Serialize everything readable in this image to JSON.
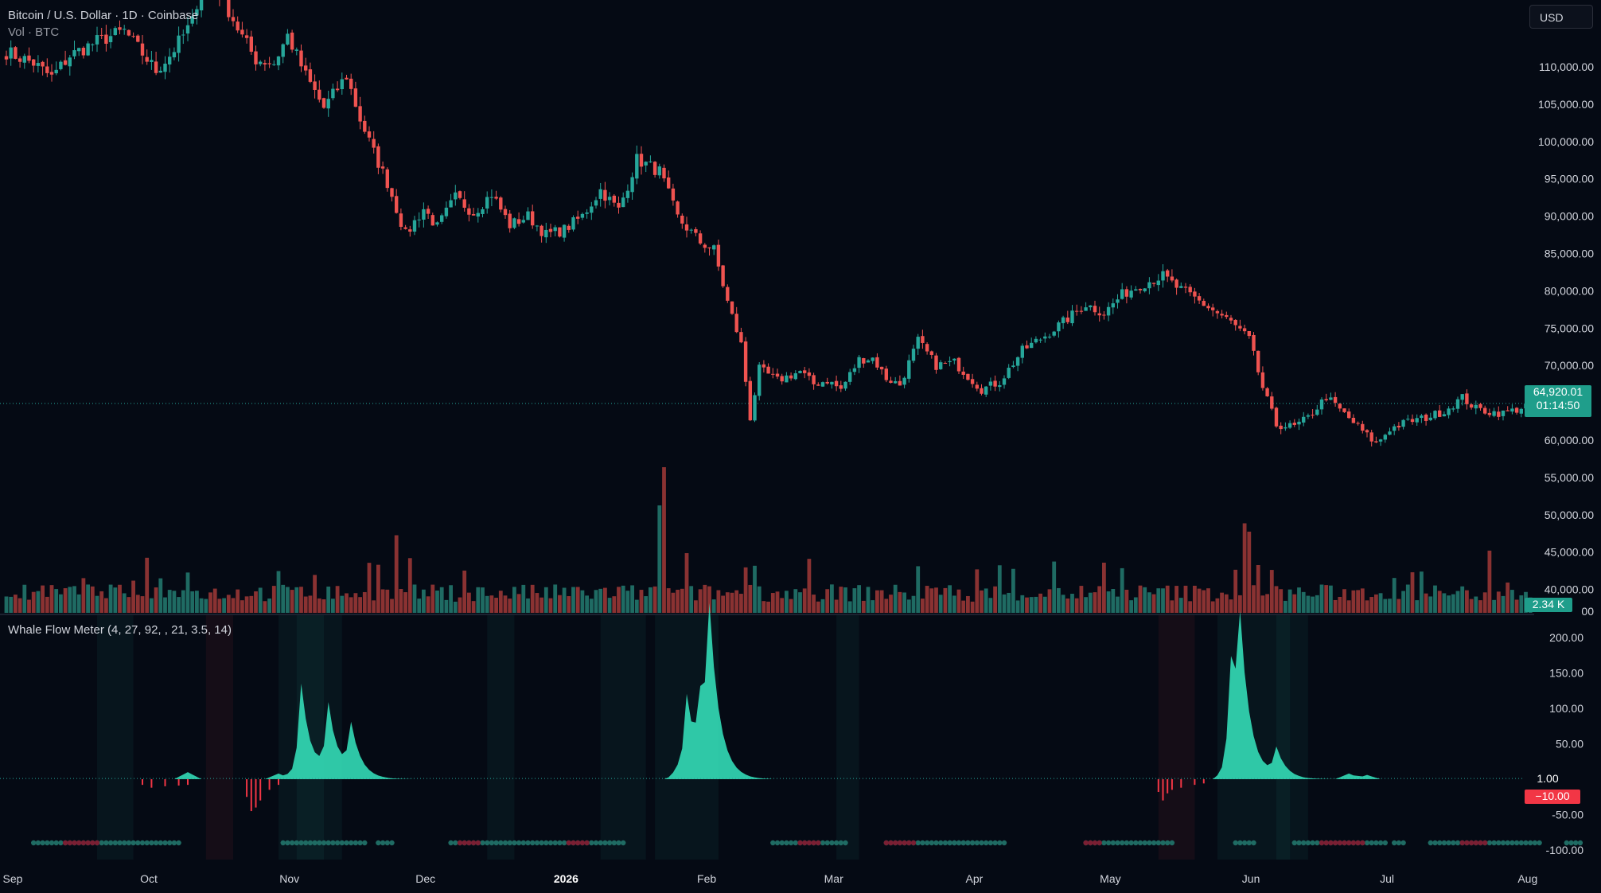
{
  "header": {
    "symbol_line": "Bitcoin / U.S. Dollar · 1D · Coinbase",
    "volume_line": "Vol · BTC",
    "currency_button": "USD"
  },
  "price_axis": {
    "ticks": [
      "110,000.00",
      "105,000.00",
      "100,000.00",
      "95,000.00",
      "90,000.00",
      "85,000.00",
      "80,000.00",
      "75,000.00",
      "70,000.00",
      "60,000.00",
      "55,000.00",
      "50,000.00",
      "45,000.00",
      "40,000.00"
    ],
    "tick_values": [
      110000,
      105000,
      100000,
      95000,
      90000,
      85000,
      80000,
      75000,
      70000,
      60000,
      55000,
      50000,
      45000,
      40000
    ],
    "range": [
      36600,
      118000
    ],
    "last_price_label": "64,920.01",
    "countdown_label": "01:14:50",
    "last_price": 64920.01,
    "volume_label": "2.34 K",
    "bottom_partial": "00"
  },
  "indicator": {
    "title": "Whale Flow Meter (4, 27, 92, , 21, 3.5, 14)",
    "ticks": [
      "200.00",
      "150.00",
      "100.00",
      "50.00",
      "-50.00",
      "-100.00"
    ],
    "tick_values": [
      200,
      150,
      100,
      50,
      -50,
      -100
    ],
    "range": [
      -112,
      215
    ],
    "current_label": "1.00",
    "current_value": 1,
    "negative_label": "−10.00",
    "negative_value": -10
  },
  "time_axis": {
    "labels": [
      "Sep",
      "Oct",
      "Nov",
      "Dec",
      "2026",
      "Feb",
      "Mar",
      "Apr",
      "May",
      "Jun",
      "Jul",
      "Aug"
    ],
    "bar_index": [
      0,
      30,
      61,
      91,
      122,
      153,
      181,
      212,
      242,
      273,
      303,
      334
    ],
    "bold": [
      "2026"
    ]
  },
  "colors": {
    "background": "#050a14",
    "up": "#26a69a",
    "down": "#ef5350",
    "vol_up": "#1f6b63",
    "vol_down": "#8a3232",
    "flow": "#36e8c0",
    "flow_neg": "#f23645",
    "last_price_tag": "#26a69a",
    "negative_tag": "#f23645",
    "text": "#d1d4dc"
  },
  "chart_data": {
    "type": "candlestick",
    "title": "Bitcoin / U.S. Dollar · 1D · Coinbase",
    "interval": "1D",
    "x_range": [
      "Sep 2025",
      "Aug 2026"
    ],
    "close_anchors": [
      [
        0,
        112000
      ],
      [
        6,
        110500
      ],
      [
        10,
        108600
      ],
      [
        14,
        111500
      ],
      [
        20,
        113400
      ],
      [
        26,
        114800
      ],
      [
        33,
        109500
      ],
      [
        36,
        111500
      ],
      [
        41,
        116000
      ],
      [
        44,
        124000
      ],
      [
        47,
        120000
      ],
      [
        52,
        114000
      ],
      [
        55,
        111000
      ],
      [
        59,
        110500
      ],
      [
        62,
        114200
      ],
      [
        66,
        108800
      ],
      [
        70,
        104500
      ],
      [
        75,
        108800
      ],
      [
        78,
        103000
      ],
      [
        81,
        98500
      ],
      [
        84,
        94500
      ],
      [
        88,
        87500
      ],
      [
        92,
        91000
      ],
      [
        95,
        88500
      ],
      [
        99,
        92500
      ],
      [
        103,
        90500
      ],
      [
        107,
        93000
      ],
      [
        111,
        88800
      ],
      [
        115,
        90000
      ],
      [
        119,
        87500
      ],
      [
        123,
        88200
      ],
      [
        127,
        90000
      ],
      [
        131,
        93500
      ],
      [
        135,
        90800
      ],
      [
        139,
        97600
      ],
      [
        144,
        96000
      ],
      [
        148,
        89800
      ],
      [
        153,
        86500
      ],
      [
        156,
        85500
      ],
      [
        159,
        78500
      ],
      [
        162,
        72800
      ],
      [
        164,
        63000
      ],
      [
        166,
        69500
      ],
      [
        170,
        68000
      ],
      [
        175,
        69200
      ],
      [
        178,
        67500
      ],
      [
        181,
        68000
      ],
      [
        184,
        66800
      ],
      [
        188,
        70800
      ],
      [
        191,
        71000
      ],
      [
        194,
        68300
      ],
      [
        197,
        67400
      ],
      [
        201,
        73300
      ],
      [
        205,
        70000
      ],
      [
        209,
        70400
      ],
      [
        212,
        68600
      ],
      [
        215,
        66800
      ],
      [
        219,
        67800
      ],
      [
        224,
        72000
      ],
      [
        229,
        74000
      ],
      [
        233,
        75800
      ],
      [
        238,
        78200
      ],
      [
        242,
        77000
      ],
      [
        246,
        79500
      ],
      [
        250,
        80800
      ],
      [
        255,
        82000
      ],
      [
        258,
        80500
      ],
      [
        262,
        79000
      ],
      [
        266,
        77400
      ],
      [
        270,
        75800
      ],
      [
        274,
        73500
      ],
      [
        277,
        67000
      ],
      [
        280,
        62000
      ],
      [
        284,
        61800
      ],
      [
        287,
        63000
      ],
      [
        291,
        65800
      ],
      [
        295,
        63500
      ],
      [
        299,
        61200
      ],
      [
        302,
        59500
      ],
      [
        305,
        61500
      ],
      [
        309,
        62500
      ],
      [
        313,
        63000
      ],
      [
        317,
        63900
      ],
      [
        321,
        65700
      ],
      [
        324,
        64200
      ],
      [
        327,
        63800
      ],
      [
        330,
        63600
      ],
      [
        333,
        64100
      ],
      [
        336,
        64920.01
      ]
    ],
    "volume_spikes": [
      [
        60,
        35
      ],
      [
        86,
        65
      ],
      [
        144,
        90
      ],
      [
        145,
        122
      ],
      [
        150,
        50
      ],
      [
        273,
        75
      ],
      [
        274,
        68
      ],
      [
        276,
        40
      ]
    ],
    "whale_flow_spikes": [
      [
        65,
        135
      ],
      [
        71,
        100
      ],
      [
        76,
        70
      ],
      [
        150,
        115
      ],
      [
        153,
        80
      ],
      [
        155,
        205
      ],
      [
        270,
        155
      ],
      [
        272,
        175
      ],
      [
        280,
        40
      ]
    ],
    "whale_flow_current": 1
  }
}
